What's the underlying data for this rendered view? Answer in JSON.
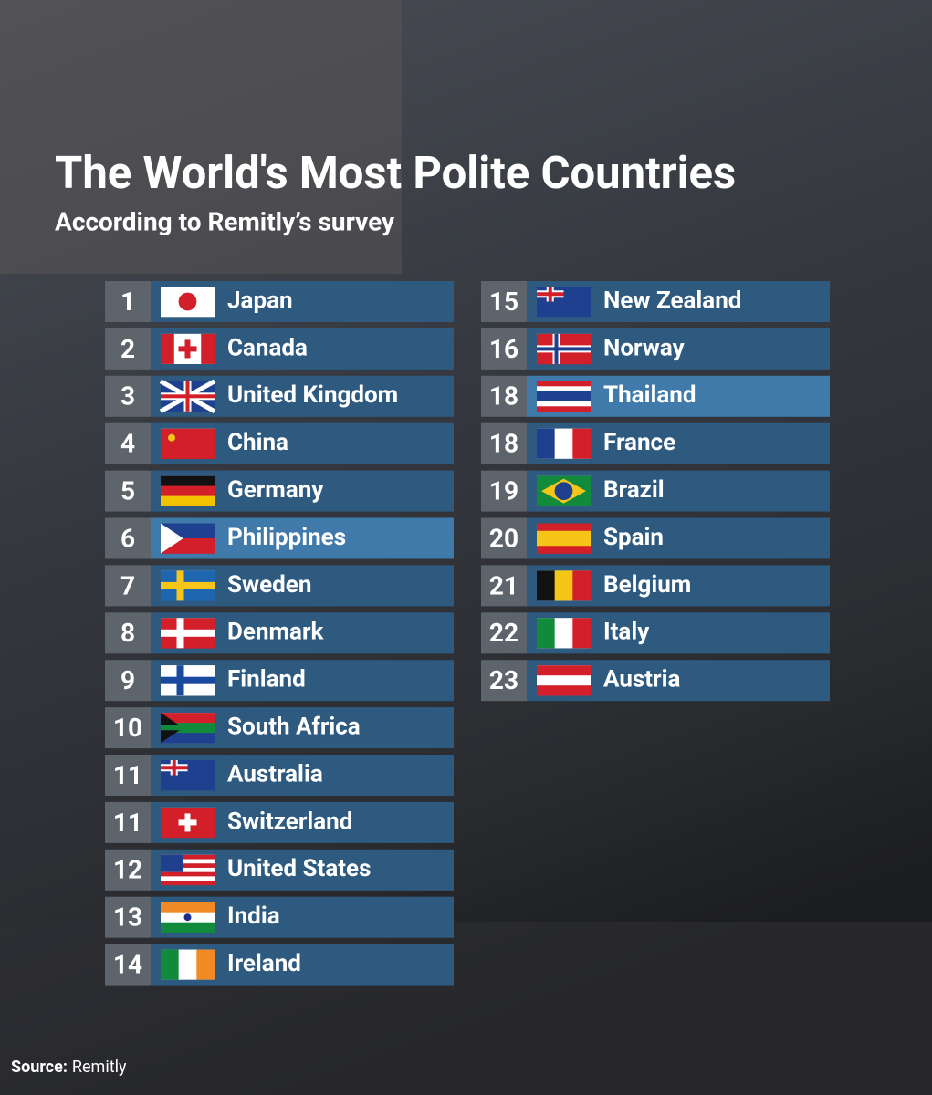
{
  "header": {
    "title": "The World's Most Polite Countries",
    "subtitle": "According to Remitly’s survey"
  },
  "entries": [
    {
      "rank": 1,
      "country": "Japan"
    },
    {
      "rank": 2,
      "country": "Canada"
    },
    {
      "rank": 3,
      "country": "United Kingdom"
    },
    {
      "rank": 4,
      "country": "China"
    },
    {
      "rank": 5,
      "country": "Germany"
    },
    {
      "rank": 6,
      "country": "Philippines"
    },
    {
      "rank": 7,
      "country": "Sweden"
    },
    {
      "rank": 8,
      "country": "Denmark"
    },
    {
      "rank": 9,
      "country": "Finland"
    },
    {
      "rank": 10,
      "country": "South Africa"
    },
    {
      "rank": 11,
      "country": "Australia"
    },
    {
      "rank": 11,
      "country": "Switzerland"
    },
    {
      "rank": 12,
      "country": "United States"
    },
    {
      "rank": 13,
      "country": "India"
    },
    {
      "rank": 14,
      "country": "Ireland"
    },
    {
      "rank": 15,
      "country": "New Zealand"
    },
    {
      "rank": 16,
      "country": "Norway"
    },
    {
      "rank": 18,
      "country": "Thailand"
    },
    {
      "rank": 18,
      "country": "France"
    },
    {
      "rank": 19,
      "country": "Brazil"
    },
    {
      "rank": 20,
      "country": "Spain"
    },
    {
      "rank": 21,
      "country": "Belgium"
    },
    {
      "rank": 22,
      "country": "Italy"
    },
    {
      "rank": 23,
      "country": "Austria"
    }
  ],
  "source": {
    "label": "Source:",
    "text": "Remitly"
  }
}
